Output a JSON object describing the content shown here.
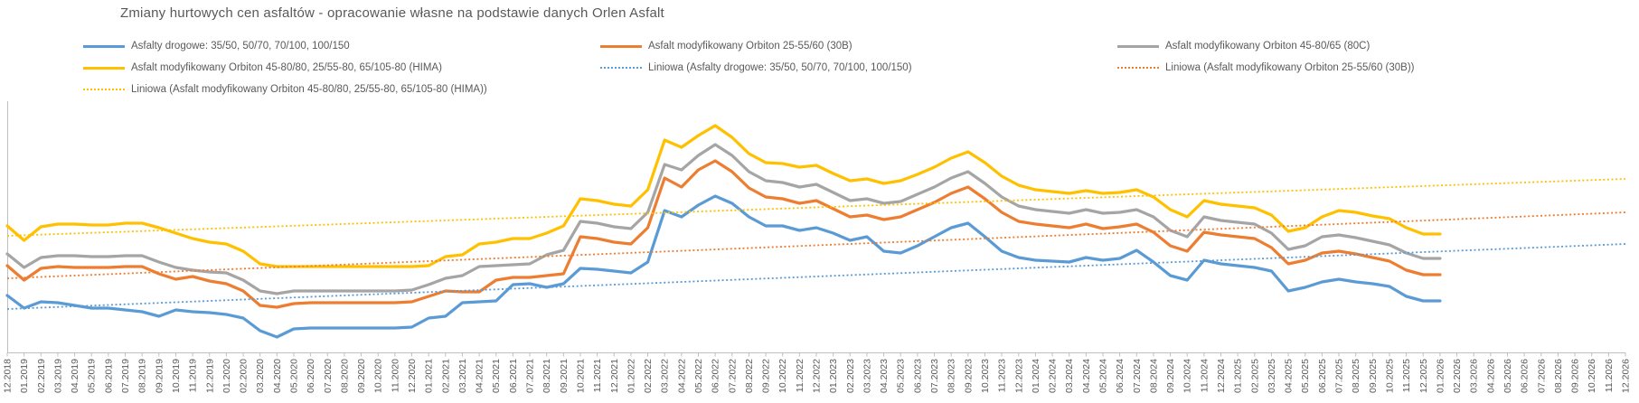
{
  "chart": {
    "title": "Zmiany hurtowych cen asfaltów - opracowanie własne na podstawie danych Orlen Asfalt",
    "title_color": "#595959",
    "axis_color": "#BFBFBF",
    "label_color": "#595959",
    "background": "#FFFFFF"
  },
  "legend": {
    "items": [
      {
        "label": "Asfalty drogowe: 35/50, 50/70, 70/100, 100/150",
        "color": "#5B9BD5",
        "line": "solid",
        "row": 0,
        "col": 0
      },
      {
        "label": "Asfalt modyfikowany Orbiton 25-55/60 (30B)",
        "color": "#ED7D31",
        "line": "solid",
        "row": 0,
        "col": 1
      },
      {
        "label": "Asfalt modyfikowany Orbiton 45-80/65 (80C)",
        "color": "#A5A5A5",
        "line": "solid",
        "row": 0,
        "col": 2
      },
      {
        "label": "Asfalt modyfikowany Orbiton 45-80/80, 25/55-80, 65/105-80 (HIMA)",
        "color": "#FFC000",
        "line": "solid",
        "row": 1,
        "col": 0
      },
      {
        "label": "Liniowa (Asfalty drogowe: 35/50, 50/70, 70/100, 100/150)",
        "color": "#5B9BD5",
        "line": "dotted",
        "row": 1,
        "col": 1
      },
      {
        "label": "Liniowa (Asfalt modyfikowany Orbiton 25-55/60 (30B))",
        "color": "#ED7D31",
        "line": "dotted",
        "row": 1,
        "col": 2
      },
      {
        "label": "Liniowa (Asfalt modyfikowany Orbiton 45-80/80, 25/55-80, 65/105-80 (HIMA))",
        "color": "#FFC000",
        "line": "dotted",
        "row": 2,
        "col": 0
      }
    ]
  },
  "chart_data": {
    "type": "line",
    "title": "Zmiany hurtowych cen asfaltów - opracowanie własne na podstawie danych Orlen Asfalt",
    "legend_position": "top",
    "grid": false,
    "y_axis_note": "source chart shows no y-axis tick labels or gridlines; values below are relative price levels read from pixel positions, not absolute prices",
    "data_note": "solid series run 12.2018 through 01.2026; dotted linear trendlines extend to 12.2026",
    "ylim": [
      0,
      280
    ],
    "x": [
      "12.2018",
      "01.2019",
      "02.2019",
      "03.2019",
      "04.2019",
      "05.2019",
      "06.2019",
      "07.2019",
      "08.2019",
      "09.2019",
      "10.2019",
      "11.2019",
      "12.2019",
      "01.2020",
      "02.2020",
      "03.2020",
      "04.2020",
      "05.2020",
      "06.2020",
      "07.2020",
      "08.2020",
      "09.2020",
      "10.2020",
      "11.2020",
      "12.2020",
      "01.2021",
      "02.2021",
      "03.2021",
      "04.2021",
      "05.2021",
      "06.2021",
      "07.2021",
      "08.2021",
      "09.2021",
      "10.2021",
      "11.2021",
      "12.2021",
      "01.2022",
      "02.2022",
      "03.2022",
      "04.2022",
      "05.2022",
      "06.2022",
      "07.2022",
      "08.2022",
      "09.2022",
      "10.2022",
      "11.2022",
      "12.2022",
      "01.2023",
      "02.2023",
      "03.2023",
      "04.2023",
      "05.2023",
      "06.2023",
      "07.2023",
      "08.2023",
      "09.2023",
      "10.2023",
      "11.2023",
      "12.2023",
      "01.2024",
      "02.2024",
      "03.2024",
      "04.2024",
      "05.2024",
      "06.2024",
      "07.2024",
      "08.2024",
      "09.2024",
      "10.2024",
      "11.2024",
      "12.2024",
      "01.2025",
      "02.2025",
      "03.2025",
      "04.2025",
      "05.2025",
      "06.2025",
      "07.2025",
      "08.2025",
      "09.2025",
      "10.2025",
      "11.2025",
      "12.2025",
      "01.2026",
      "02.2026",
      "03.2026",
      "04.2026",
      "05.2026",
      "06.2026",
      "07.2026",
      "08.2026",
      "09.2026",
      "10.2026",
      "11.2026",
      "12.2026"
    ],
    "series": [
      {
        "id": "asfalty-drogowe",
        "name": "Asfalty drogowe: 35/50, 50/70, 70/100, 100/150",
        "color": "#5B9BD5",
        "style": "solid",
        "values": [
          63,
          49,
          56,
          55,
          52,
          49,
          49,
          47,
          45,
          40,
          47,
          45,
          44,
          42,
          38,
          24,
          17,
          26,
          27,
          27,
          27,
          27,
          27,
          27,
          28,
          38,
          40,
          55,
          56,
          57,
          75,
          76,
          72,
          76,
          93,
          92,
          90,
          88,
          100,
          157,
          150,
          163,
          173,
          165,
          150,
          140,
          140,
          135,
          138,
          132,
          124,
          128,
          112,
          110,
          118,
          128,
          138,
          143,
          128,
          112,
          105,
          102,
          101,
          100,
          105,
          102,
          104,
          113,
          100,
          85,
          80,
          102,
          98,
          96,
          94,
          90,
          68,
          72,
          78,
          81,
          78,
          76,
          73,
          62,
          57,
          57
        ]
      },
      {
        "id": "orbiton-30b",
        "name": "Asfalt modyfikowany Orbiton 25-55/60 (30B)",
        "color": "#ED7D31",
        "style": "solid",
        "values": [
          96,
          80,
          93,
          95,
          94,
          94,
          94,
          95,
          95,
          87,
          81,
          84,
          79,
          76,
          68,
          52,
          50,
          54,
          55,
          55,
          55,
          55,
          55,
          55,
          56,
          62,
          68,
          67,
          67,
          80,
          83,
          83,
          85,
          87,
          128,
          126,
          122,
          120,
          138,
          193,
          183,
          202,
          212,
          200,
          182,
          172,
          170,
          165,
          168,
          159,
          150,
          152,
          147,
          150,
          158,
          166,
          176,
          183,
          170,
          155,
          145,
          142,
          140,
          138,
          142,
          137,
          139,
          142,
          133,
          118,
          112,
          133,
          130,
          128,
          126,
          116,
          98,
          102,
          110,
          112,
          109,
          105,
          101,
          91,
          86,
          86
        ]
      },
      {
        "id": "orbiton-80c",
        "name": "Asfalt modyfikowany Orbiton 45-80/65 (80C)",
        "color": "#A5A5A5",
        "style": "solid",
        "values": [
          109,
          94,
          105,
          107,
          107,
          106,
          106,
          107,
          107,
          100,
          94,
          91,
          89,
          88,
          80,
          68,
          65,
          68,
          68,
          68,
          68,
          68,
          68,
          68,
          69,
          75,
          82,
          85,
          95,
          96,
          97,
          98,
          108,
          113,
          145,
          143,
          139,
          137,
          155,
          208,
          202,
          218,
          230,
          218,
          200,
          190,
          188,
          183,
          186,
          177,
          168,
          170,
          165,
          167,
          175,
          183,
          193,
          200,
          187,
          172,
          162,
          158,
          156,
          154,
          158,
          154,
          155,
          158,
          150,
          135,
          128,
          150,
          146,
          144,
          142,
          132,
          114,
          118,
          128,
          130,
          127,
          123,
          119,
          110,
          104,
          104
        ]
      },
      {
        "id": "orbiton-hima",
        "name": "Asfalt modyfikowany Orbiton 45-80/80, 25/55-80, 65/105-80 (HIMA)",
        "color": "#FFC000",
        "style": "solid",
        "values": [
          140,
          124,
          139,
          142,
          142,
          141,
          141,
          143,
          143,
          138,
          132,
          126,
          122,
          120,
          112,
          98,
          95,
          95,
          95,
          95,
          95,
          95,
          95,
          95,
          95,
          96,
          106,
          108,
          120,
          122,
          126,
          126,
          132,
          140,
          170,
          168,
          164,
          162,
          180,
          235,
          227,
          240,
          251,
          238,
          220,
          210,
          209,
          205,
          207,
          198,
          190,
          192,
          187,
          190,
          197,
          205,
          215,
          222,
          210,
          195,
          185,
          180,
          178,
          176,
          179,
          176,
          177,
          180,
          172,
          158,
          150,
          168,
          164,
          162,
          160,
          152,
          134,
          138,
          150,
          157,
          155,
          151,
          148,
          138,
          131,
          131
        ]
      },
      {
        "id": "trend-asfalty-drogowe",
        "name": "Liniowa (Asfalty drogowe: 35/50, 50/70, 70/100, 100/150)",
        "color": "#5B9BD5",
        "style": "dotted",
        "trend": {
          "start": 48,
          "end": 120
        }
      },
      {
        "id": "trend-orbiton-30b",
        "name": "Liniowa (Asfalt modyfikowany Orbiton 25-55/60 (30B))",
        "color": "#ED7D31",
        "style": "dotted",
        "trend": {
          "start": 82,
          "end": 155
        }
      },
      {
        "id": "trend-orbiton-hima",
        "name": "Liniowa (Asfalt modyfikowany Orbiton 45-80/80, 25/55-80, 65/105-80 (HIMA))",
        "color": "#FFC000",
        "style": "dotted",
        "trend": {
          "start": 129,
          "end": 192
        }
      }
    ]
  }
}
